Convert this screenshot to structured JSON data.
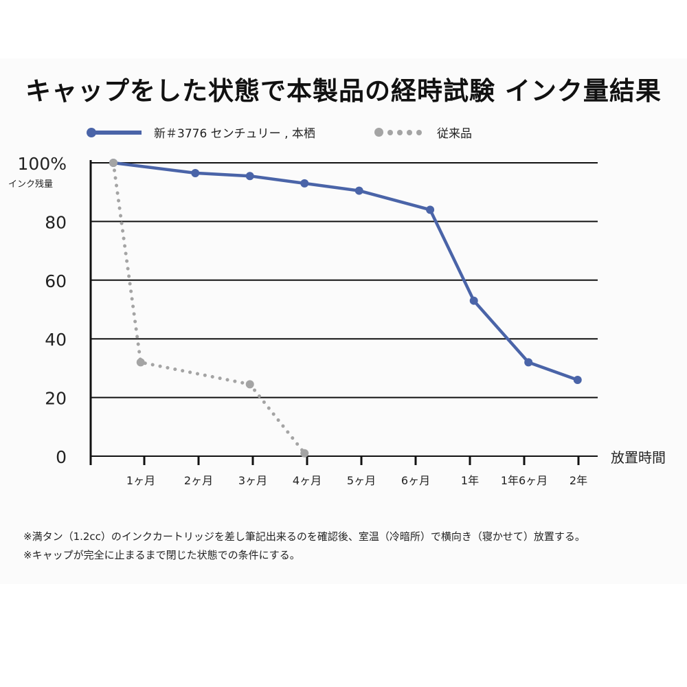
{
  "title": "キャップをした状態で本製品の経時試験 インク量結果",
  "legend": {
    "series1": "新＃3776 センチュリー , 本栖",
    "series2": "従来品"
  },
  "notes": [
    "※満タン（1.2cc）のインクカートリッジを差し筆記出来るのを確認後、室温（冷暗所）で横向き（寝かせて）放置する。",
    "※キャップが完全に止まるまで閉じた状態での条件にする。"
  ],
  "colors": {
    "series1": "#4a64a8",
    "series2": "#a4a4a4"
  },
  "chart_data": {
    "type": "line",
    "title": "キャップをした状態で本製品の経時試験 インク量結果",
    "ylabel": "インク残量",
    "xlabel": "放置時間",
    "ylim": [
      0,
      100
    ],
    "yticks": [
      "100%",
      "80",
      "60",
      "40",
      "20",
      "0"
    ],
    "ytick_values": [
      100,
      80,
      60,
      40,
      20,
      0
    ],
    "categories": [
      "1ヶ月",
      "2ヶ月",
      "3ヶ月",
      "4ヶ月",
      "5ヶ月",
      "6ヶ月",
      "1年",
      "1年6ヶ月",
      "2年"
    ],
    "x_start_label": "",
    "series": [
      {
        "name": "新＃3776 センチュリー , 本栖",
        "style": "solid",
        "x": [
          0,
          1.5,
          2.5,
          3.5,
          4.5,
          5.8,
          6.6,
          7.6,
          8.5
        ],
        "values": [
          100,
          96.5,
          95.5,
          93,
          90.5,
          84,
          53,
          32,
          26
        ]
      },
      {
        "name": "従来品",
        "style": "dotted",
        "x": [
          0,
          0.5,
          2.5,
          3.5
        ],
        "values": [
          100,
          32,
          24.5,
          1
        ]
      }
    ],
    "grid": true,
    "legend_position": "top-left"
  }
}
